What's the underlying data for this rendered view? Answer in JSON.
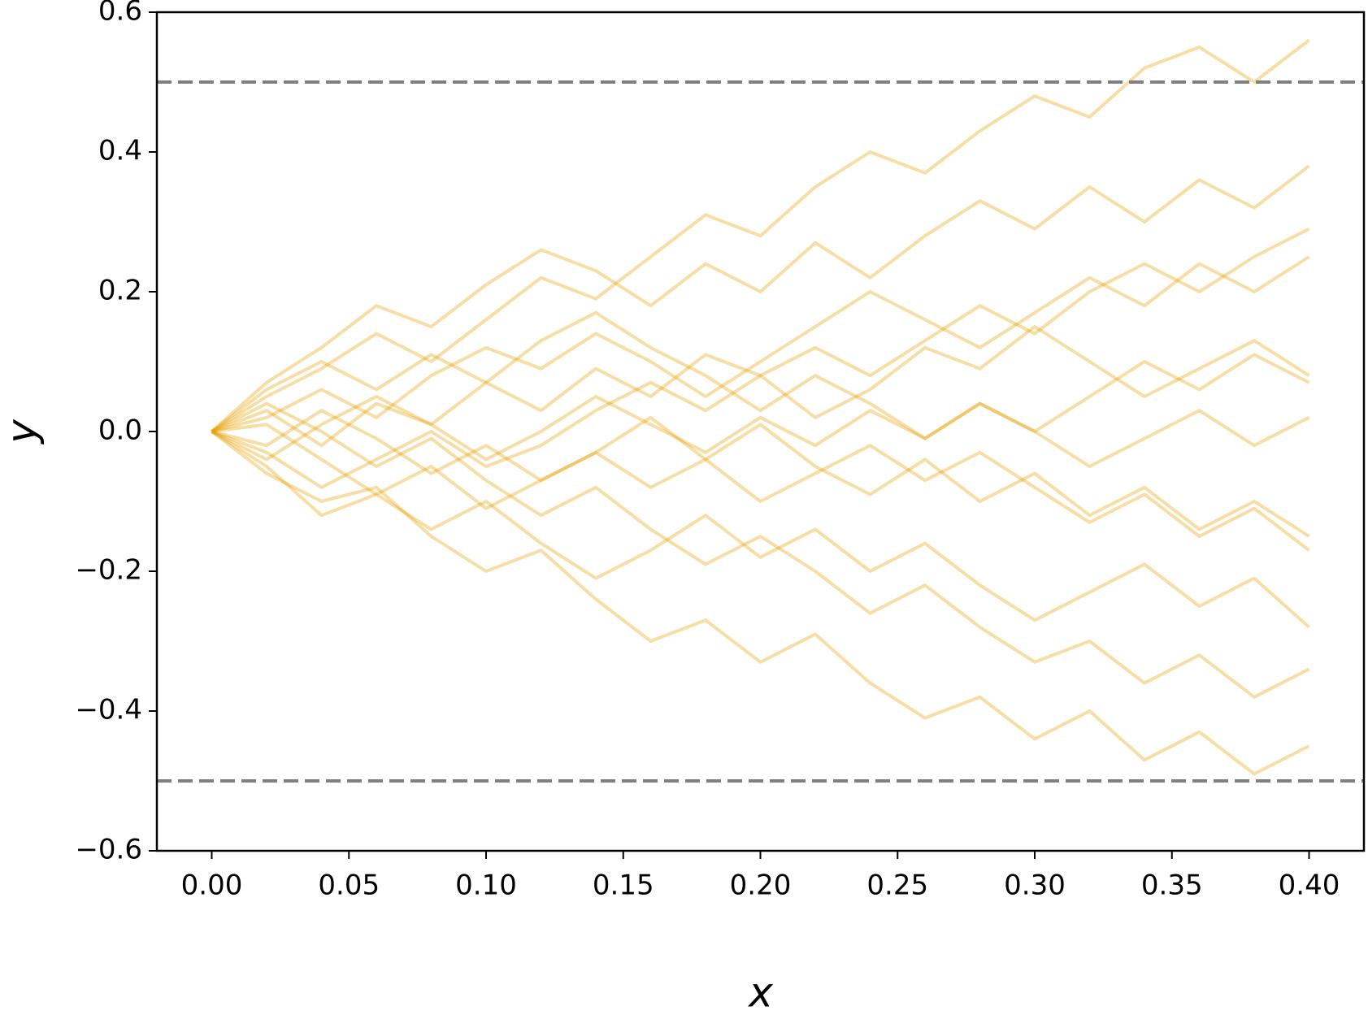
{
  "chart_data": {
    "type": "line",
    "xlabel": "x",
    "ylabel": "y",
    "color": "#e6a000",
    "x": [
      0,
      0.02,
      0.04,
      0.06,
      0.08,
      0.1,
      0.12,
      0.14,
      0.16,
      0.18,
      0.2,
      0.22,
      0.24,
      0.26,
      0.28,
      0.3,
      0.32,
      0.34,
      0.36,
      0.38,
      0.4
    ],
    "series": [
      {
        "values": [
          0,
          0.05,
          0.09,
          0.14,
          0.1,
          0.16,
          0.22,
          0.19,
          0.25,
          0.31,
          0.28,
          0.35,
          0.4,
          0.37,
          0.43,
          0.48,
          0.45,
          0.52,
          0.55,
          0.5,
          0.56
        ]
      },
      {
        "values": [
          0,
          -0.06,
          -0.1,
          -0.08,
          -0.15,
          -0.2,
          -0.17,
          -0.24,
          -0.3,
          -0.27,
          -0.33,
          -0.29,
          -0.36,
          -0.41,
          -0.38,
          -0.44,
          -0.4,
          -0.47,
          -0.43,
          -0.49,
          -0.45
        ]
      },
      {
        "values": [
          0,
          0.03,
          -0.02,
          0.04,
          0.01,
          0.07,
          0.03,
          0.09,
          0.05,
          0.11,
          0.08,
          0.02,
          0.06,
          0.12,
          0.09,
          0.15,
          0.1,
          0.05,
          0.09,
          0.13,
          0.08
        ]
      },
      {
        "values": [
          0,
          -0.02,
          0.03,
          -0.01,
          -0.06,
          -0.02,
          -0.07,
          -0.03,
          0.02,
          -0.04,
          0.01,
          -0.05,
          -0.09,
          -0.04,
          -0.1,
          -0.06,
          -0.12,
          -0.08,
          -0.14,
          -0.1,
          -0.15
        ]
      },
      {
        "values": [
          0,
          0.07,
          0.12,
          0.18,
          0.15,
          0.21,
          0.26,
          0.23,
          0.18,
          0.24,
          0.2,
          0.27,
          0.22,
          0.28,
          0.33,
          0.29,
          0.35,
          0.3,
          0.36,
          0.32,
          0.38
        ]
      },
      {
        "values": [
          0,
          -0.05,
          -0.12,
          -0.09,
          -0.14,
          -0.1,
          -0.16,
          -0.21,
          -0.17,
          -0.12,
          -0.18,
          -0.14,
          -0.2,
          -0.16,
          -0.22,
          -0.27,
          -0.23,
          -0.19,
          -0.25,
          -0.21,
          -0.28
        ]
      },
      {
        "values": [
          0,
          0.02,
          0.06,
          0.02,
          0.08,
          0.12,
          0.09,
          0.14,
          0.1,
          0.05,
          0.1,
          0.15,
          0.2,
          0.16,
          0.12,
          0.17,
          0.22,
          0.18,
          0.24,
          0.2,
          0.25
        ]
      },
      {
        "values": [
          0,
          -0.04,
          0.01,
          0.05,
          0.01,
          -0.04,
          0,
          0.05,
          0.01,
          -0.03,
          0.02,
          -0.02,
          0.03,
          -0.01,
          0.04,
          0,
          -0.05,
          -0.01,
          0.03,
          -0.02,
          0.02
        ]
      },
      {
        "values": [
          0,
          0.04,
          0,
          -0.05,
          -0.01,
          -0.07,
          -0.12,
          -0.08,
          -0.14,
          -0.19,
          -0.15,
          -0.2,
          -0.26,
          -0.22,
          -0.28,
          -0.33,
          -0.3,
          -0.36,
          -0.32,
          -0.38,
          -0.34
        ]
      },
      {
        "values": [
          0,
          0.06,
          0.1,
          0.06,
          0.11,
          0.07,
          0.13,
          0.17,
          0.12,
          0.08,
          0.03,
          0.08,
          0.04,
          -0.01,
          0.04,
          0,
          0.05,
          0.1,
          0.06,
          0.11,
          0.07
        ]
      },
      {
        "values": [
          0,
          -0.03,
          -0.08,
          -0.04,
          0,
          -0.05,
          -0.02,
          0.03,
          0.07,
          0.03,
          0.08,
          0.12,
          0.08,
          0.13,
          0.18,
          0.14,
          0.2,
          0.24,
          0.2,
          0.25,
          0.29
        ]
      },
      {
        "values": [
          0,
          0.01,
          -0.04,
          -0.09,
          -0.05,
          -0.11,
          -0.07,
          -0.03,
          -0.08,
          -0.04,
          -0.1,
          -0.06,
          -0.02,
          -0.07,
          -0.03,
          -0.08,
          -0.13,
          -0.09,
          -0.15,
          -0.11,
          -0.17
        ]
      }
    ],
    "hlines": [
      0.5,
      -0.5
    ],
    "hline_color": "#808080",
    "hline_style": "dashed",
    "xlim": [
      -0.02,
      0.42
    ],
    "ylim": [
      -0.6,
      0.6
    ],
    "xticks": [
      {
        "value": 0,
        "label": "0.00"
      },
      0.05,
      {
        "value": 0.1,
        "label": "0.10"
      },
      0.15,
      {
        "value": 0.2,
        "label": "0.20"
      },
      0.25,
      {
        "value": 0.3,
        "label": "0.30"
      },
      0.35,
      {
        "value": 0.4,
        "label": "0.40"
      }
    ],
    "yticks": [
      {
        "value": -0.6,
        "label": "−0.6"
      },
      {
        "value": -0.4,
        "label": "−0.4"
      },
      {
        "value": -0.2,
        "label": "−0.2"
      },
      {
        "value": 0,
        "label": "0.0"
      },
      0.2,
      0.4,
      0.6
    ],
    "grid": false
  }
}
